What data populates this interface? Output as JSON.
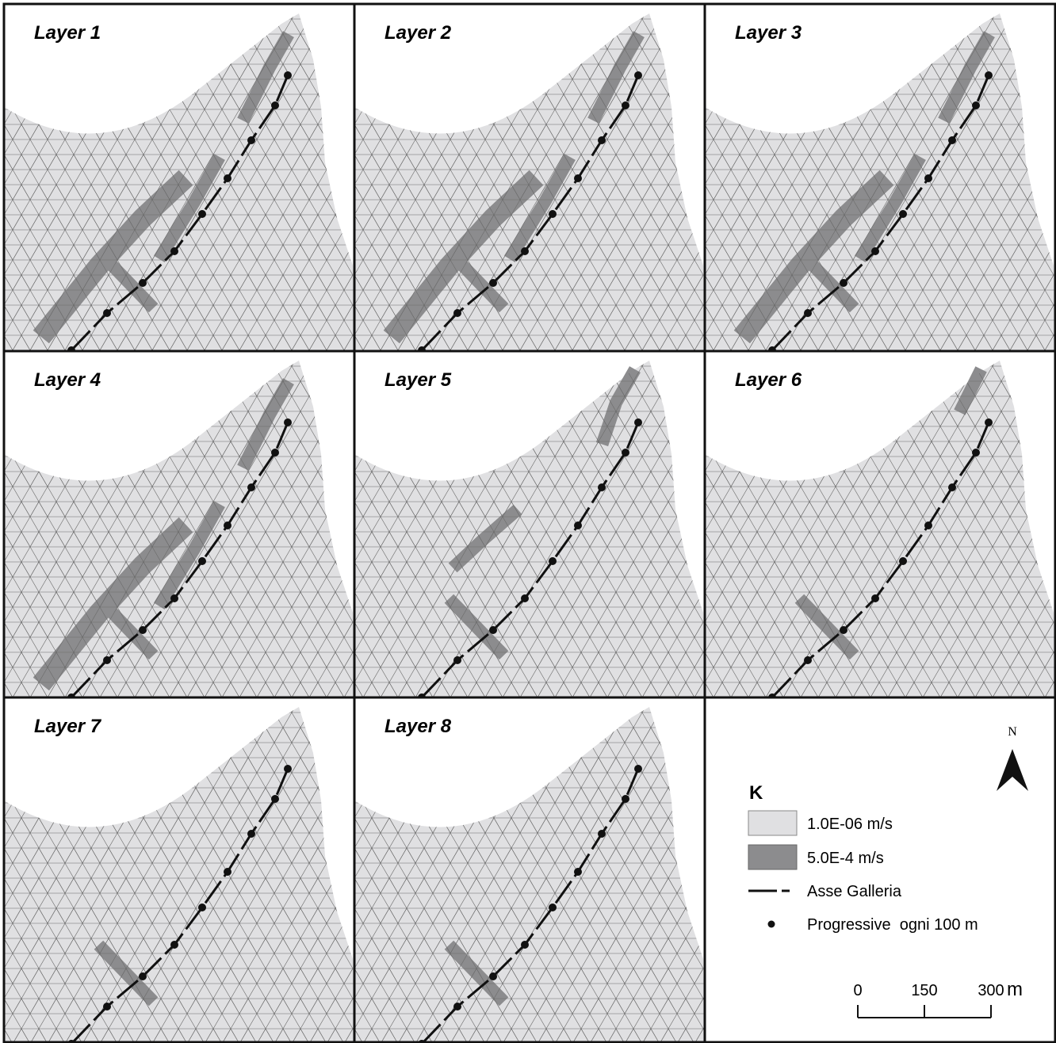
{
  "panels": [
    {
      "label": "Layer 1"
    },
    {
      "label": "Layer 2"
    },
    {
      "label": "Layer 3"
    },
    {
      "label": "Layer 4"
    },
    {
      "label": "Layer 5"
    },
    {
      "label": "Layer 6"
    },
    {
      "label": "Layer 7"
    },
    {
      "label": "Layer 8"
    }
  ],
  "legend": {
    "title": "K",
    "items": [
      "1.0E-06 m/s",
      "5.0E-4 m/s",
      "Asse Galleria",
      "Progressive  ogni 100 m"
    ]
  },
  "north": "N",
  "scale": {
    "ticks": [
      0,
      150,
      300
    ],
    "unit": "m"
  }
}
